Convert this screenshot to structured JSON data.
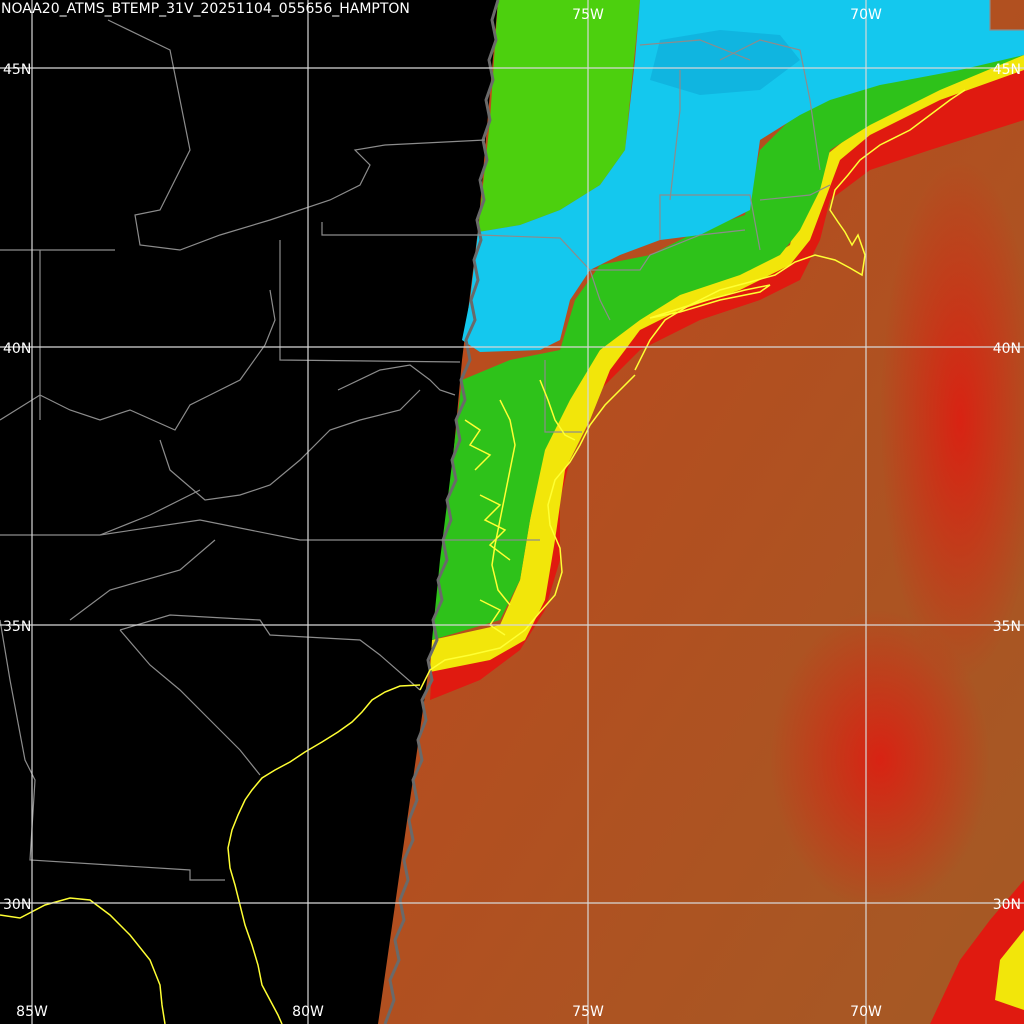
{
  "title": "NOAA20_ATMS_BTEMP_31V_20251104_055656_HAMPTON",
  "lon_labels_top": [
    "75W",
    "70W"
  ],
  "lon_labels_bottom": [
    "85W",
    "80W",
    "75W",
    "70W"
  ],
  "lat_labels_left": [
    "45N",
    "40N",
    "35N",
    "30N"
  ],
  "lat_labels_right": [
    "45N",
    "40N",
    "35N",
    "30N"
  ],
  "colors": {
    "background": "#000000",
    "gridline": "#d8d8d8",
    "political_boundary": "#8c8c8c",
    "coastline": "#ffff33",
    "ocean_warm": "#a45a25",
    "ocean_hot": "#e01a10",
    "yellow_band": "#f2e60a",
    "land_green": "#2ec21a",
    "cold_cyan": "#14c8ee",
    "swath_edge_marker": "#6a6a6a"
  }
}
